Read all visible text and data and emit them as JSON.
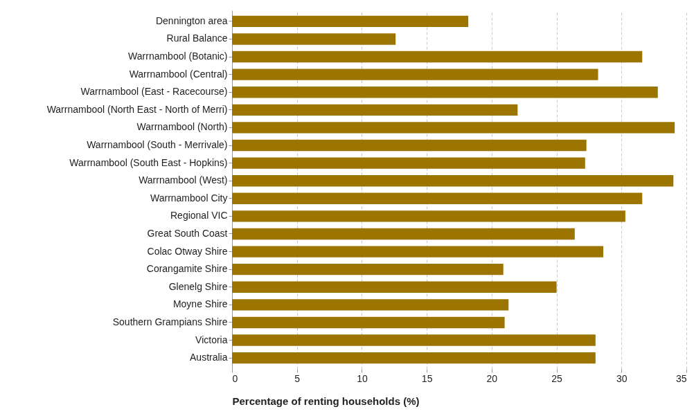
{
  "chart_data": {
    "type": "bar",
    "orientation": "horizontal",
    "xlabel": "Percentage of renting households (%)",
    "categories": [
      "Dennington area",
      "Rural Balance",
      "Warrnambool (Botanic)",
      "Warrnambool (Central)",
      "Warrnambool (East - Racecourse)",
      "Warrnambool (North East - North of Merri)",
      "Warrnambool (North)",
      "Warrnambool (South - Merrivale)",
      "Warrnambool (South East - Hopkins)",
      "Warrnambool (West)",
      "Warrnambool City",
      "Regional VIC",
      "Great South Coast",
      "Colac Otway Shire",
      "Corangamite Shire",
      "Glenelg Shire",
      "Moyne Shire",
      "Southern Grampians Shire",
      "Victoria",
      "Australia"
    ],
    "values": [
      18.2,
      12.6,
      31.6,
      28.2,
      32.8,
      22.0,
      34.1,
      27.3,
      27.2,
      34.0,
      31.6,
      30.3,
      26.4,
      28.6,
      20.9,
      25.0,
      21.3,
      21.0,
      28.0,
      28.0
    ],
    "color": "#9b7500",
    "xlim": [
      0,
      35
    ],
    "xticks": [
      0,
      5,
      10,
      15,
      20,
      25,
      30,
      35
    ],
    "grid": "x"
  }
}
